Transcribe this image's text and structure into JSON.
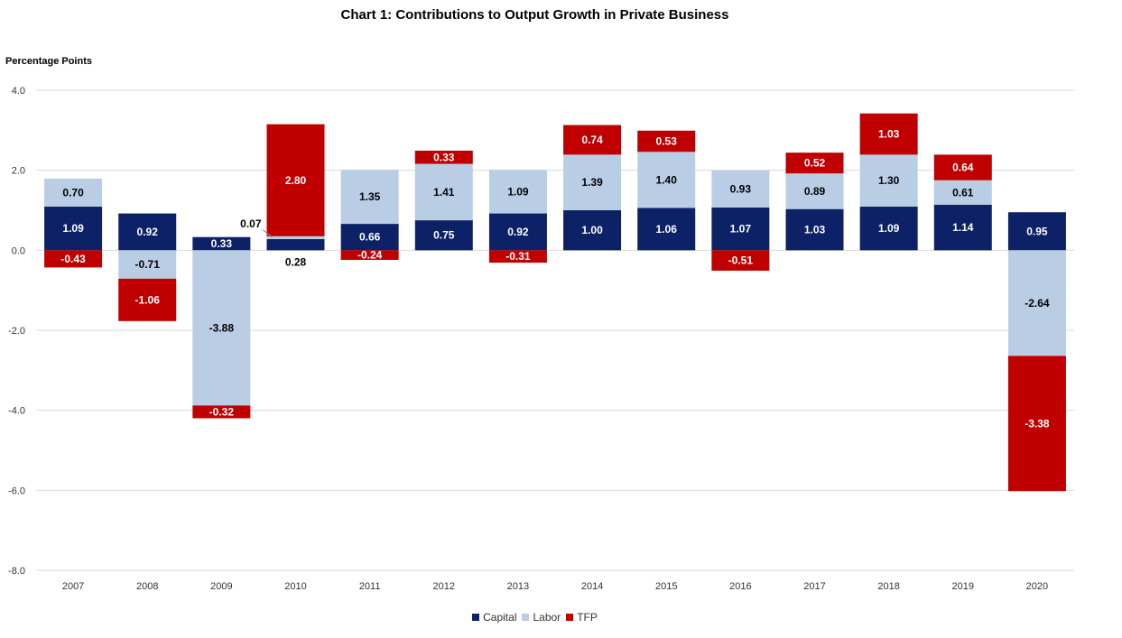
{
  "chart_data": {
    "type": "bar",
    "stacked": true,
    "title": "Chart 1: Contributions to Output Growth in Private Business",
    "ylabel": "Percentage Points",
    "xlabel": "",
    "ylim": [
      -8,
      4
    ],
    "yticks": [
      "4.0",
      "2.0",
      "0.0",
      "-2.0",
      "-4.0",
      "-6.0",
      "-8.0"
    ],
    "grid": true,
    "legend_position": "bottom",
    "categories": [
      "2007",
      "2008",
      "2009",
      "2010",
      "2011",
      "2012",
      "2013",
      "2014",
      "2015",
      "2016",
      "2017",
      "2018",
      "2019",
      "2020"
    ],
    "series": [
      {
        "name": "Capital",
        "color": "#0d2266",
        "label_color": "#ffffff",
        "values": [
          1.09,
          0.92,
          0.33,
          0.28,
          0.66,
          0.75,
          0.92,
          1.0,
          1.06,
          1.07,
          1.03,
          1.09,
          1.14,
          0.95
        ]
      },
      {
        "name": "Labor",
        "color": "#b9cde4",
        "label_color": "#000000",
        "values": [
          0.7,
          -0.71,
          -3.88,
          0.07,
          1.35,
          1.41,
          1.09,
          1.39,
          1.4,
          0.93,
          0.89,
          1.3,
          0.61,
          -2.64
        ]
      },
      {
        "name": "TFP",
        "color": "#c00000",
        "label_color": "#ffffff",
        "values": [
          -0.43,
          -1.06,
          -0.32,
          2.8,
          -0.24,
          0.33,
          -0.31,
          0.74,
          0.53,
          -0.51,
          0.52,
          1.03,
          0.64,
          -3.38
        ]
      }
    ]
  }
}
